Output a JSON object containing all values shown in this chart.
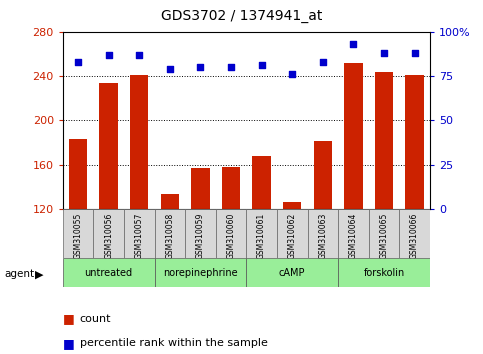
{
  "title": "GDS3702 / 1374941_at",
  "samples": [
    "GSM310055",
    "GSM310056",
    "GSM310057",
    "GSM310058",
    "GSM310059",
    "GSM310060",
    "GSM310061",
    "GSM310062",
    "GSM310063",
    "GSM310064",
    "GSM310065",
    "GSM310066"
  ],
  "bar_values": [
    183,
    234,
    241,
    133,
    157,
    158,
    168,
    126,
    181,
    252,
    244,
    241
  ],
  "percentile_values": [
    83,
    87,
    87,
    79,
    80,
    80,
    81,
    76,
    83,
    93,
    88,
    88
  ],
  "ylim_left": [
    120,
    280
  ],
  "ylim_right": [
    0,
    100
  ],
  "yticks_left": [
    120,
    160,
    200,
    240,
    280
  ],
  "yticks_right": [
    0,
    25,
    50,
    75,
    100
  ],
  "bar_color": "#cc2200",
  "dot_color": "#0000cc",
  "grid_color": "#000000",
  "agent_groups": [
    {
      "label": "untreated",
      "start": 0,
      "end": 3
    },
    {
      "label": "norepinephrine",
      "start": 3,
      "end": 6
    },
    {
      "label": "cAMP",
      "start": 6,
      "end": 9
    },
    {
      "label": "forskolin",
      "start": 9,
      "end": 12
    }
  ],
  "group_color": "#99ee99",
  "sample_box_color": "#d8d8d8",
  "legend_count_color": "#cc2200",
  "legend_dot_color": "#0000cc",
  "tick_label_color_left": "#cc2200",
  "tick_label_color_right": "#0000cc"
}
